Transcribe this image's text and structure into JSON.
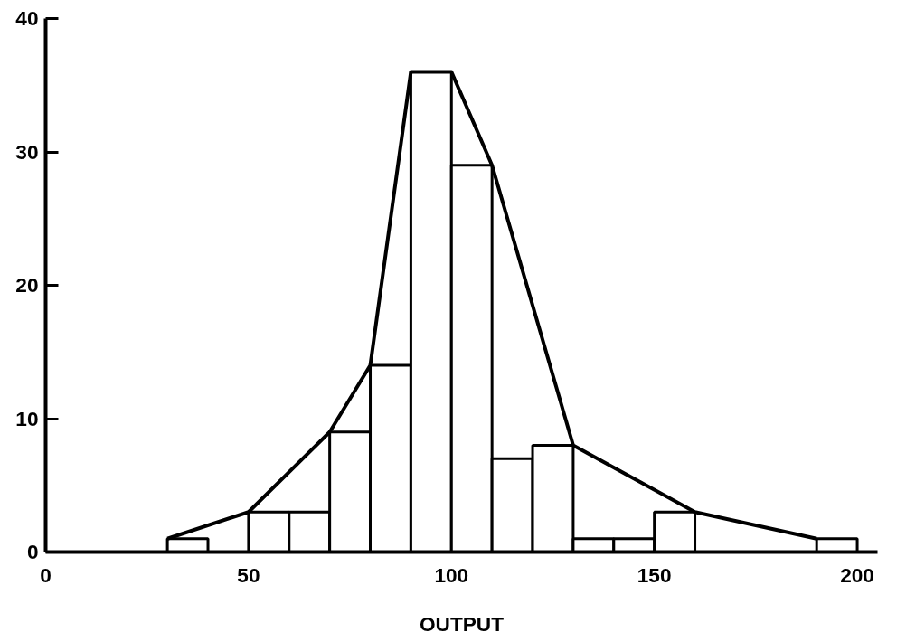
{
  "chart_data": {
    "type": "histogram",
    "xlabel": "OUTPUT",
    "bins": [
      30,
      40,
      50,
      60,
      70,
      80,
      90,
      100,
      110,
      120,
      130,
      140,
      150,
      160,
      170,
      180,
      190,
      200
    ],
    "values": [
      1,
      0,
      3,
      3,
      9,
      14,
      36,
      29,
      7,
      8,
      1,
      1,
      3,
      0,
      0,
      0,
      1
    ],
    "color": "#ffffff",
    "series": [
      {
        "type": "line",
        "color": "#000000",
        "x": [
          30,
          50,
          70,
          80,
          90,
          100,
          110,
          130,
          160,
          190
        ],
        "values": [
          1,
          3,
          9,
          14,
          36,
          36,
          29,
          8,
          3,
          1
        ]
      }
    ],
    "xlim": [
      0,
      205
    ],
    "ylim": [
      0,
      40
    ],
    "xticks": [
      0,
      50,
      100,
      150,
      200
    ],
    "yticks": [
      0,
      10,
      20,
      30,
      40
    ],
    "grid": false
  }
}
